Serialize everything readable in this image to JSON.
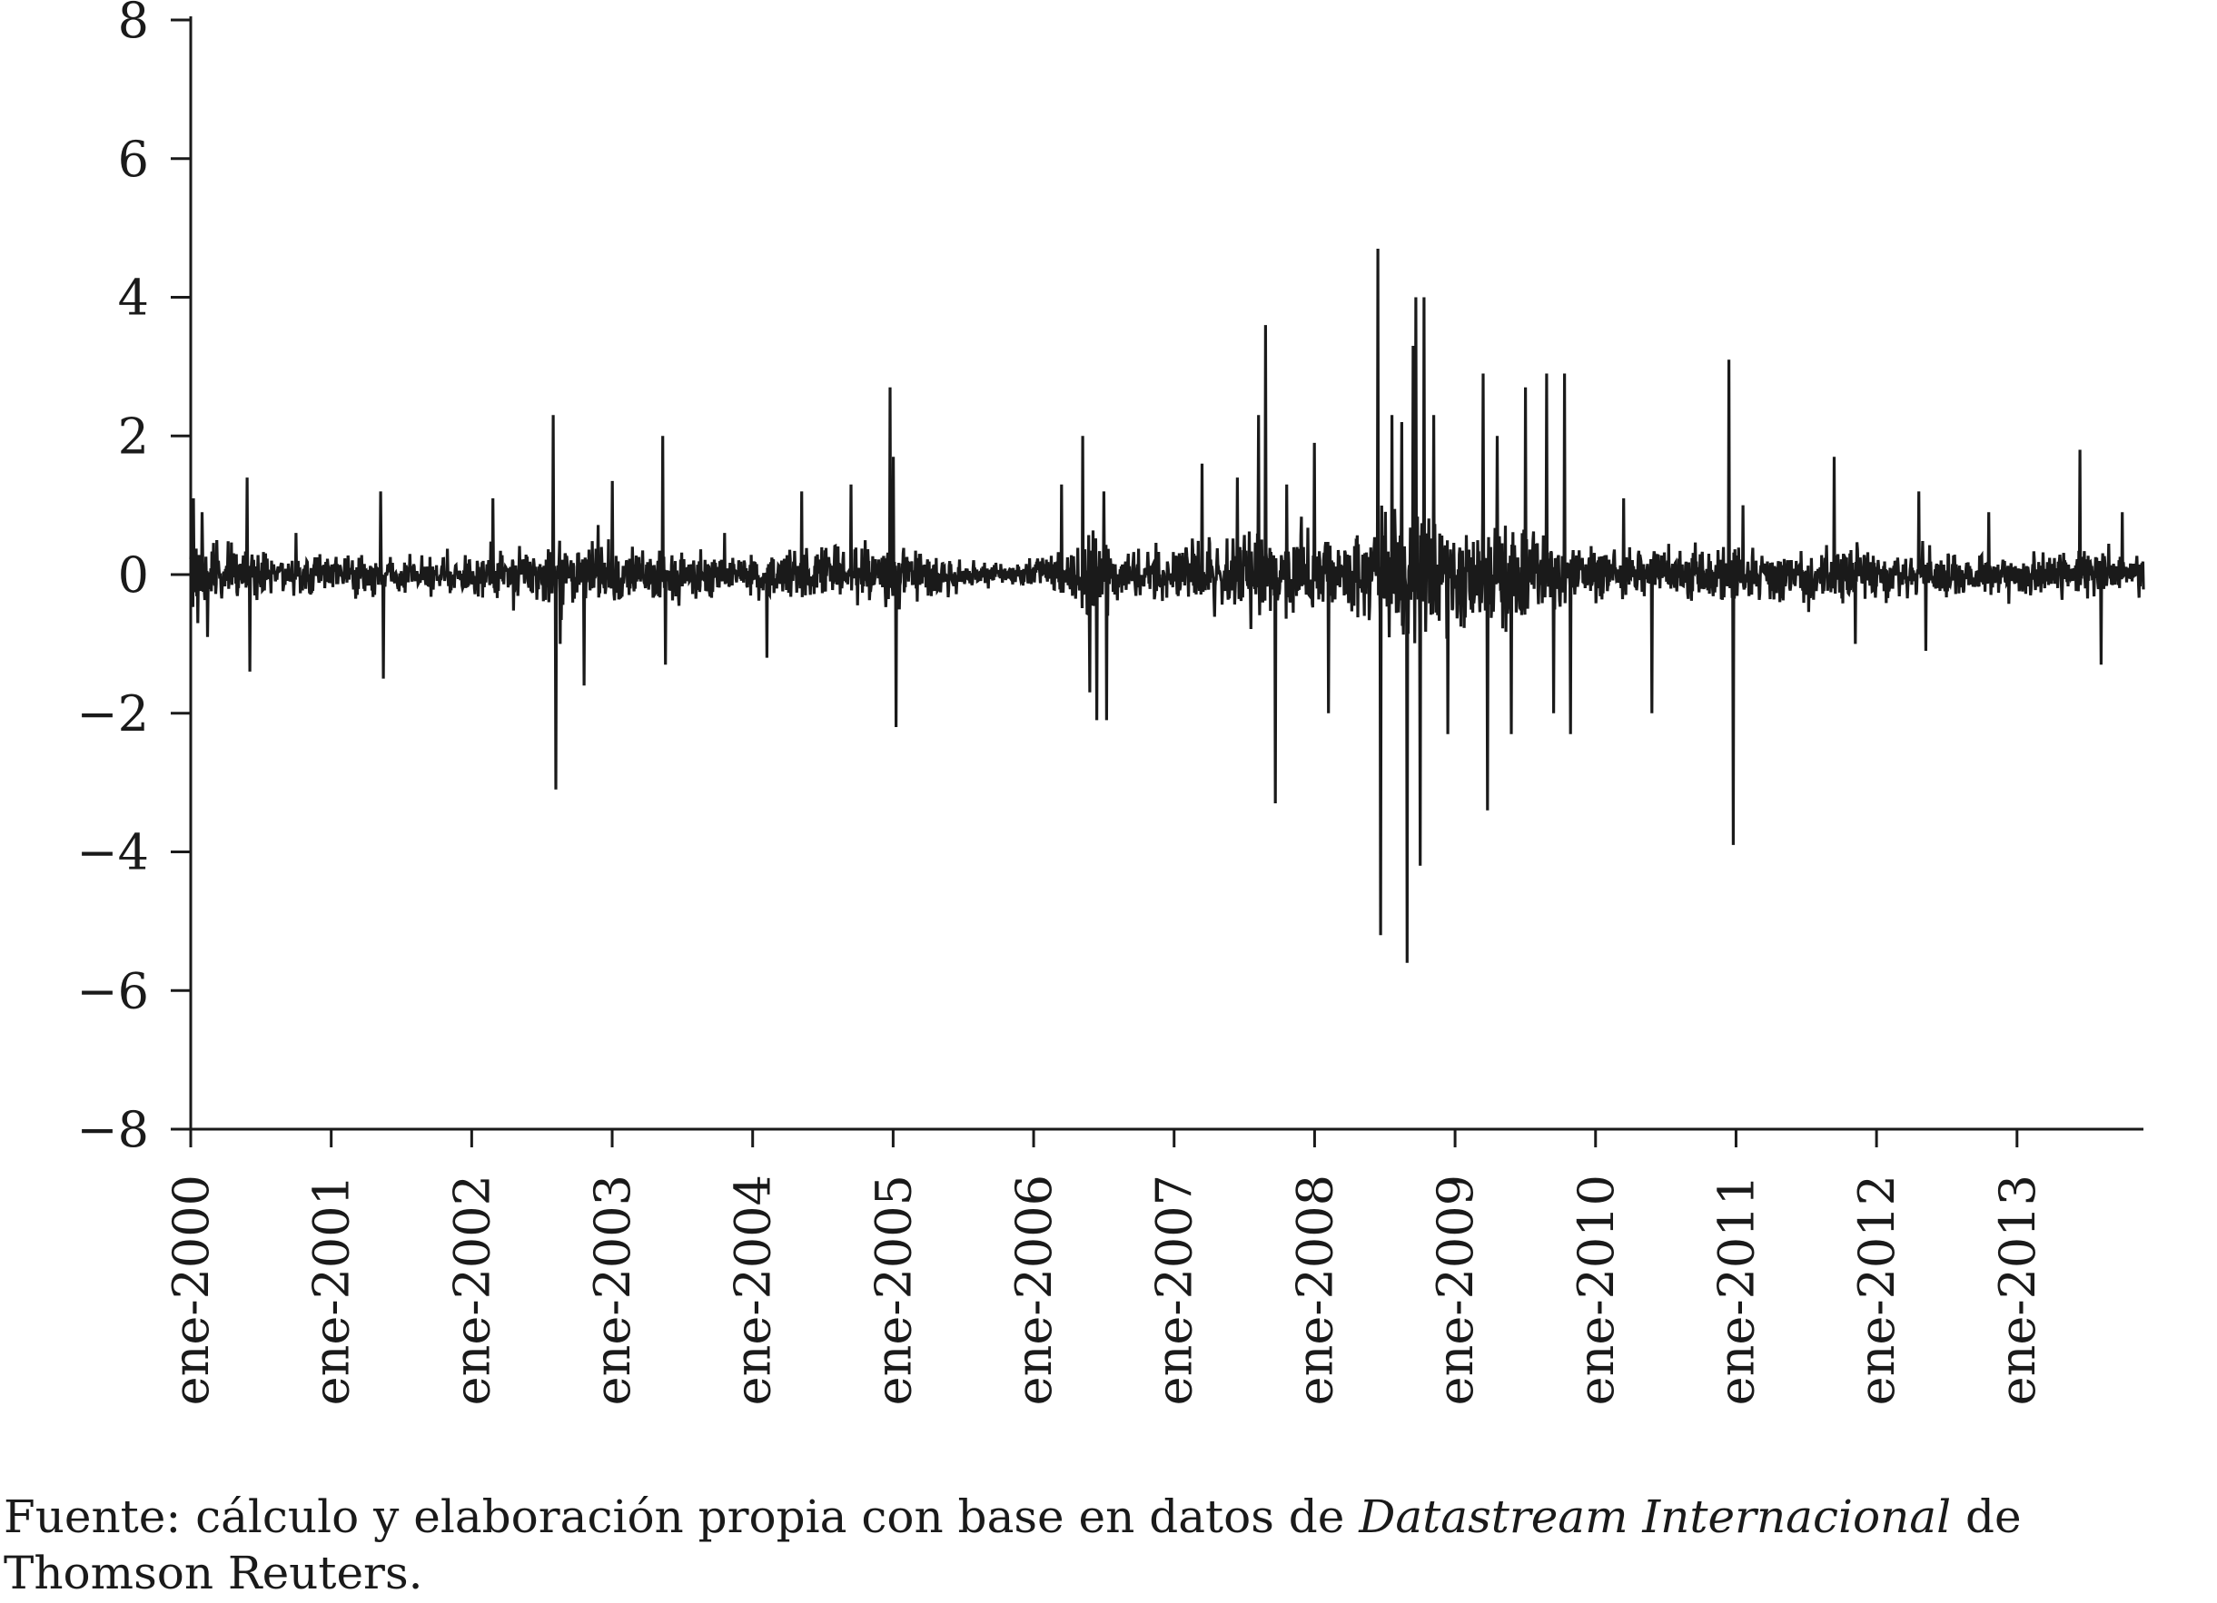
{
  "chart_data": {
    "type": "line",
    "title": "",
    "xlabel": "",
    "ylabel": "",
    "ylim": [
      -8,
      8
    ],
    "yticks": [
      8,
      6,
      4,
      2,
      0,
      -2,
      -4,
      -6,
      -8
    ],
    "ytick_labels": [
      "8",
      "6",
      "4",
      "2",
      "0",
      "−2",
      "−4",
      "−6",
      "−8"
    ],
    "xlim": [
      2000.0,
      2013.9
    ],
    "xticks": [
      {
        "year": 2000,
        "label": "ene-2000"
      },
      {
        "year": 2001,
        "label": "ene-2001"
      },
      {
        "year": 2002,
        "label": "ene-2002"
      },
      {
        "year": 2003,
        "label": "ene-2003"
      },
      {
        "year": 2004,
        "label": "ene-2004"
      },
      {
        "year": 2005,
        "label": "ene-2005"
      },
      {
        "year": 2006,
        "label": "ene-2006"
      },
      {
        "year": 2007,
        "label": "ene-2007"
      },
      {
        "year": 2008,
        "label": "ene-2008"
      },
      {
        "year": 2009,
        "label": "ene-2009"
      },
      {
        "year": 2010,
        "label": "ene-2010"
      },
      {
        "year": 2011,
        "label": "ene-2011"
      },
      {
        "year": 2012,
        "label": "ene-2012"
      },
      {
        "year": 2013,
        "label": "ene-2013"
      }
    ],
    "grid": false,
    "legend": "none",
    "line_color": "#1a1a1a",
    "series": [
      {
        "volatility_profile": [
          [
            2000.0,
            0.75
          ],
          [
            2000.5,
            0.5
          ],
          [
            2001.0,
            0.42
          ],
          [
            2001.5,
            0.4
          ],
          [
            2002.0,
            0.45
          ],
          [
            2002.4,
            0.55
          ],
          [
            2002.6,
            0.85
          ],
          [
            2002.9,
            0.65
          ],
          [
            2003.3,
            0.5
          ],
          [
            2003.8,
            0.42
          ],
          [
            2004.3,
            0.45
          ],
          [
            2004.7,
            0.55
          ],
          [
            2005.0,
            0.6
          ],
          [
            2005.4,
            0.4
          ],
          [
            2005.8,
            0.22
          ],
          [
            2006.2,
            0.45
          ],
          [
            2006.4,
            0.85
          ],
          [
            2006.6,
            0.55
          ],
          [
            2007.0,
            0.55
          ],
          [
            2007.5,
            0.85
          ],
          [
            2007.8,
            0.9
          ],
          [
            2008.2,
            0.7
          ],
          [
            2008.4,
            1.25
          ],
          [
            2008.7,
            1.55
          ],
          [
            2008.9,
            1.25
          ],
          [
            2009.2,
            1.15
          ],
          [
            2009.5,
            1.05
          ],
          [
            2009.8,
            0.75
          ],
          [
            2010.2,
            0.55
          ],
          [
            2010.7,
            0.6
          ],
          [
            2011.0,
            0.6
          ],
          [
            2011.4,
            0.48
          ],
          [
            2011.8,
            0.62
          ],
          [
            2012.2,
            0.5
          ],
          [
            2012.6,
            0.45
          ],
          [
            2013.0,
            0.38
          ],
          [
            2013.4,
            0.5
          ],
          [
            2013.9,
            0.45
          ]
        ],
        "spikes": [
          [
            2000.02,
            1.1
          ],
          [
            2000.05,
            -0.7
          ],
          [
            2000.08,
            0.9
          ],
          [
            2000.12,
            -0.9
          ],
          [
            2000.4,
            1.4
          ],
          [
            2000.42,
            -1.4
          ],
          [
            2000.75,
            0.6
          ],
          [
            2001.35,
            1.2
          ],
          [
            2001.37,
            -1.5
          ],
          [
            2002.15,
            1.1
          ],
          [
            2002.58,
            2.3
          ],
          [
            2002.6,
            -3.1
          ],
          [
            2002.63,
            -1.0
          ],
          [
            2002.8,
            -1.6
          ],
          [
            2003.0,
            1.35
          ],
          [
            2003.36,
            2.0
          ],
          [
            2003.38,
            -1.3
          ],
          [
            2003.8,
            0.6
          ],
          [
            2004.1,
            -1.2
          ],
          [
            2004.35,
            1.2
          ],
          [
            2004.7,
            1.3
          ],
          [
            2004.98,
            2.7
          ],
          [
            2005.0,
            1.7
          ],
          [
            2005.02,
            -2.2
          ],
          [
            2006.2,
            1.3
          ],
          [
            2006.35,
            2.0
          ],
          [
            2006.4,
            -1.7
          ],
          [
            2006.45,
            -2.1
          ],
          [
            2006.5,
            1.2
          ],
          [
            2006.52,
            -2.1
          ],
          [
            2007.2,
            1.6
          ],
          [
            2007.45,
            1.4
          ],
          [
            2007.6,
            2.3
          ],
          [
            2007.65,
            3.6
          ],
          [
            2007.72,
            -3.3
          ],
          [
            2007.8,
            1.3
          ],
          [
            2008.0,
            1.9
          ],
          [
            2008.1,
            -2.0
          ],
          [
            2008.45,
            4.7
          ],
          [
            2008.47,
            -5.2
          ],
          [
            2008.55,
            2.3
          ],
          [
            2008.62,
            2.2
          ],
          [
            2008.66,
            -5.6
          ],
          [
            2008.7,
            3.3
          ],
          [
            2008.72,
            4.0
          ],
          [
            2008.75,
            -4.2
          ],
          [
            2008.78,
            4.0
          ],
          [
            2008.85,
            2.3
          ],
          [
            2008.95,
            -2.3
          ],
          [
            2009.2,
            2.9
          ],
          [
            2009.23,
            -3.4
          ],
          [
            2009.3,
            2.0
          ],
          [
            2009.4,
            -2.3
          ],
          [
            2009.5,
            2.7
          ],
          [
            2009.65,
            2.9
          ],
          [
            2009.7,
            -2.0
          ],
          [
            2009.78,
            2.9
          ],
          [
            2009.82,
            -2.3
          ],
          [
            2010.2,
            1.1
          ],
          [
            2010.4,
            -2.0
          ],
          [
            2010.95,
            3.1
          ],
          [
            2010.98,
            -3.9
          ],
          [
            2011.05,
            1.0
          ],
          [
            2011.7,
            1.7
          ],
          [
            2011.85,
            -1.0
          ],
          [
            2012.3,
            1.2
          ],
          [
            2012.35,
            -1.1
          ],
          [
            2012.8,
            0.9
          ],
          [
            2013.45,
            1.8
          ],
          [
            2013.6,
            -1.3
          ],
          [
            2013.75,
            0.9
          ]
        ]
      }
    ]
  },
  "source_note": {
    "prefix": "Fuente: cálculo y elaboración propia con base en datos de ",
    "italic": "Datastream Internacional",
    "suffix": " de Thomson Reuters."
  }
}
